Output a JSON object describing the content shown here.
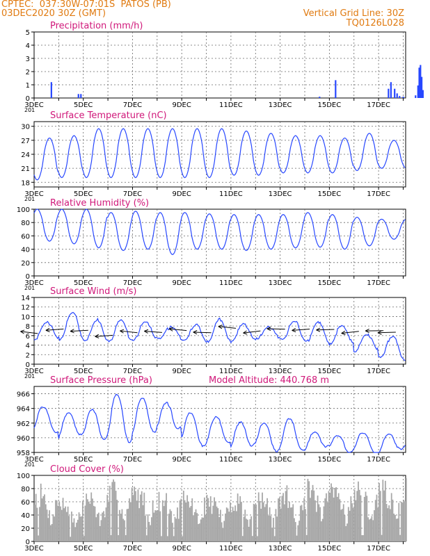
{
  "header": {
    "line1": "CPTEC:  037:30W-07:01S  PATOS (PB)",
    "line2": "03DEC2020 30Z (GMT)",
    "grid_label": "Vertical Grid Line: 30Z",
    "model_code": "TQ0126L028"
  },
  "colors": {
    "series": "#2747ff",
    "cloud": "#a8a8a8",
    "title": "#d0187a",
    "header": "#e07a10",
    "wind_arrow": "#000000"
  },
  "x_ticks": [
    "3DEC",
    "5DEC",
    "7DEC",
    "9DEC",
    "11DEC",
    "13DEC",
    "15DEC",
    "17DEC"
  ],
  "x_stub": "201",
  "chart_data": [
    {
      "id": "precip",
      "type": "bar",
      "title": "Precipitation (mm/h)",
      "ylim": [
        0,
        5
      ],
      "yticks": [
        "0",
        "1",
        "2",
        "3",
        "4",
        "5"
      ],
      "ytick_values": [
        0,
        1,
        2,
        3,
        4,
        5
      ],
      "x_start": "2020-12-03T06",
      "step_hours": 3,
      "events": [
        [
          0.7,
          1.2
        ],
        [
          1.8,
          0.3
        ],
        [
          1.9,
          0.3
        ],
        [
          11.6,
          0.1
        ],
        [
          12.25,
          1.35
        ],
        [
          14.4,
          0.7
        ],
        [
          14.5,
          1.2
        ],
        [
          14.65,
          0.7
        ],
        [
          14.75,
          0.35
        ],
        [
          14.85,
          0.15
        ],
        [
          15.0,
          0.1
        ],
        [
          15.5,
          0.2
        ],
        [
          15.6,
          0.95
        ],
        [
          15.65,
          2.3
        ],
        [
          15.7,
          2.5
        ],
        [
          15.75,
          1.6
        ],
        [
          15.8,
          0.6
        ]
      ]
    },
    {
      "id": "temp",
      "type": "line",
      "title": "Surface Temperature (nC)",
      "ylim": [
        17,
        31
      ],
      "yticks": [
        "18",
        "21",
        "24",
        "27",
        "30"
      ],
      "ytick_values": [
        18,
        21,
        24,
        27,
        30
      ],
      "daily_extremes": [
        [
          18.5,
          27.5
        ],
        [
          19,
          28
        ],
        [
          19,
          29.5
        ],
        [
          19,
          29.5
        ],
        [
          19,
          29.5
        ],
        [
          19,
          29.5
        ],
        [
          19,
          29.5
        ],
        [
          19,
          29.5
        ],
        [
          19.5,
          29
        ],
        [
          19.5,
          28.5
        ],
        [
          20,
          28
        ],
        [
          20,
          28
        ],
        [
          20,
          27.5
        ],
        [
          20.5,
          28.5
        ],
        [
          21,
          27
        ]
      ]
    },
    {
      "id": "rh",
      "type": "line",
      "title": "Relative Humidity (%)",
      "ylim": [
        0,
        100
      ],
      "yticks": [
        "0",
        "20",
        "40",
        "60",
        "80",
        "100"
      ],
      "ytick_values": [
        0,
        20,
        40,
        60,
        80,
        100
      ],
      "daily_extremes": [
        [
          52,
          100
        ],
        [
          48,
          100
        ],
        [
          42,
          100
        ],
        [
          38,
          95
        ],
        [
          40,
          97
        ],
        [
          32,
          95
        ],
        [
          40,
          95
        ],
        [
          40,
          93
        ],
        [
          38,
          92
        ],
        [
          40,
          92
        ],
        [
          42,
          92
        ],
        [
          43,
          95
        ],
        [
          40,
          92
        ],
        [
          45,
          88
        ],
        [
          55,
          85
        ]
      ]
    },
    {
      "id": "wind",
      "type": "line",
      "title": "Surface Wind (m/s)",
      "ylim": [
        0,
        14
      ],
      "yticks": [
        "0",
        "2",
        "4",
        "6",
        "8",
        "10",
        "12",
        "14"
      ],
      "ytick_values": [
        0,
        2,
        4,
        6,
        8,
        10,
        12,
        14
      ],
      "daily_extremes": [
        [
          5,
          9
        ],
        [
          5,
          11
        ],
        [
          5,
          9
        ],
        [
          5,
          9
        ],
        [
          5,
          9
        ],
        [
          5,
          8
        ],
        [
          5,
          8
        ],
        [
          5,
          9
        ],
        [
          5,
          8.5
        ],
        [
          5,
          8
        ],
        [
          5,
          9
        ],
        [
          5,
          8.5
        ],
        [
          4.5,
          8
        ],
        [
          2.5,
          6.5
        ],
        [
          1,
          6
        ]
      ],
      "arrow_days": [
        0.15,
        1.2,
        2.2,
        3.2,
        4.2,
        5.2,
        6.2,
        7.2,
        8.2,
        9.2,
        10.2,
        11.2,
        12.2,
        13.2,
        14.2,
        14.7
      ]
    },
    {
      "id": "pres",
      "type": "line",
      "title": "Surface Pressure (hPa)",
      "ylim": [
        958,
        967
      ],
      "yticks": [
        "958",
        "960",
        "962",
        "964",
        "966"
      ],
      "ytick_values": [
        958,
        960,
        962,
        964,
        966
      ],
      "daily_extremes": [
        [
          961,
          963.8
        ],
        [
          960,
          963.5
        ],
        [
          959.8,
          964.2
        ],
        [
          959.8,
          965.5
        ],
        [
          960.5,
          965.3
        ],
        [
          961,
          965.2
        ],
        [
          959.3,
          963.2
        ],
        [
          959.3,
          962.5
        ],
        [
          958.5,
          962.5
        ],
        [
          958.5,
          962
        ],
        [
          958.5,
          962.2
        ],
        [
          958.3,
          961
        ],
        [
          958.2,
          960.5
        ],
        [
          958.2,
          960.3
        ],
        [
          958.1,
          960.5
        ]
      ],
      "annotation": "Model Altitude: 440.768  m"
    },
    {
      "id": "cloud",
      "type": "bar",
      "title": "Cloud Cover (%)",
      "ylim": [
        0,
        100
      ],
      "yticks": [
        "0",
        "20",
        "40",
        "60",
        "80",
        "100"
      ],
      "ytick_values": [
        0,
        20,
        40,
        60,
        80,
        100
      ],
      "daily_max": [
        90,
        70,
        82,
        95,
        92,
        80,
        80,
        75,
        82,
        80,
        88,
        96,
        96,
        95,
        98
      ]
    }
  ]
}
